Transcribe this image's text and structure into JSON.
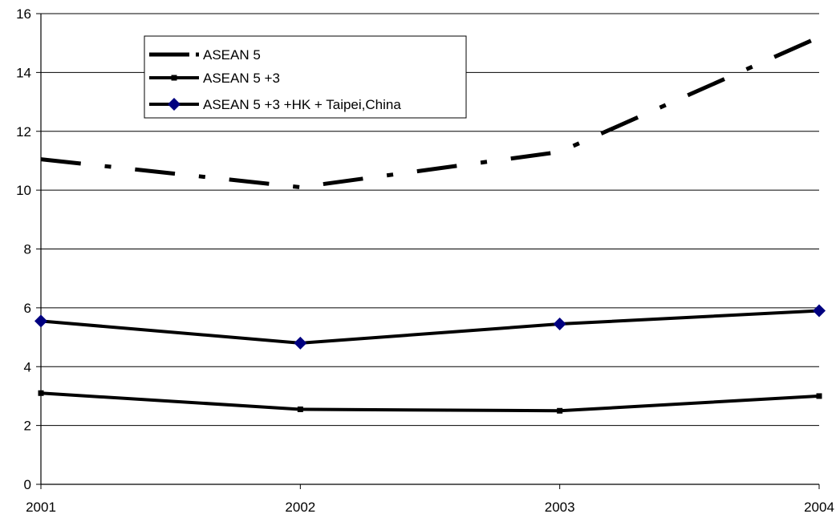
{
  "chart_data": {
    "type": "line",
    "title": "",
    "xlabel": "",
    "ylabel": "",
    "categories": [
      "2001",
      "2002",
      "2003",
      "2004"
    ],
    "ylim": [
      0,
      16
    ],
    "yticks": [
      0,
      2,
      4,
      6,
      8,
      10,
      12,
      14,
      16
    ],
    "grid": true,
    "legend_position": "top-left",
    "series": [
      {
        "name": "ASEAN 5",
        "values": [
          11.05,
          10.1,
          11.3,
          15.2
        ],
        "style": "dash-dot",
        "color": "#000000",
        "marker": "none"
      },
      {
        "name": "ASEAN 5 +3",
        "values": [
          3.1,
          2.55,
          2.5,
          3.0
        ],
        "style": "solid",
        "color": "#000000",
        "marker": "square"
      },
      {
        "name": "ASEAN 5 +3 +HK + Taipei,China",
        "values": [
          5.55,
          4.8,
          5.45,
          5.9
        ],
        "style": "solid",
        "color": "#000000",
        "marker": "diamond",
        "marker_color": "#000080"
      }
    ]
  }
}
